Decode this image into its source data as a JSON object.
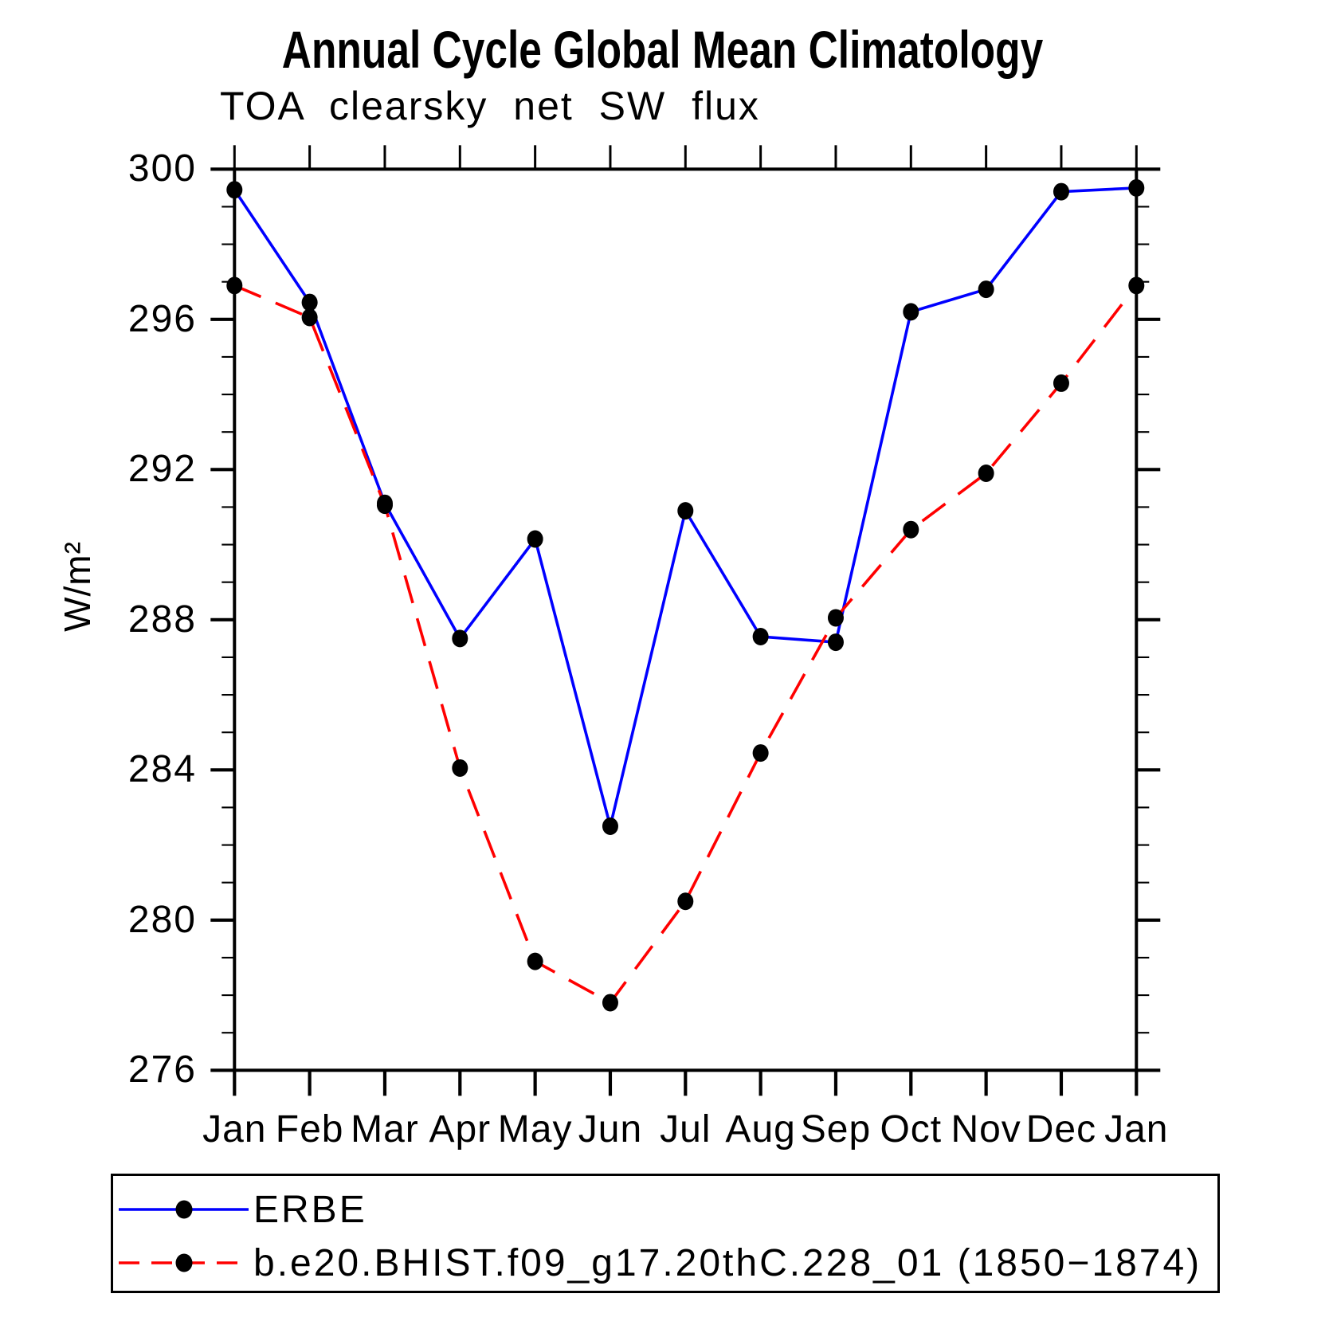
{
  "page": {
    "background": "#FFFFFF"
  },
  "chart_data": {
    "type": "line",
    "title": "Annual Cycle Global Mean Climatology",
    "subtitle": "TOA clearsky net SW flux",
    "ylabel": "W/m²",
    "x_categories": [
      "Jan",
      "Feb",
      "Mar",
      "Apr",
      "May",
      "Jun",
      "Jul",
      "Aug",
      "Sep",
      "Oct",
      "Nov",
      "Dec",
      "Jan"
    ],
    "ylim": [
      276,
      300
    ],
    "y_major_ticks": [
      300,
      296,
      292,
      288,
      284,
      280,
      276
    ],
    "y_minor_step": 1,
    "grid": false,
    "legend_position": "bottom-left-box",
    "axis_color": "#000000",
    "marker_color": "#000000",
    "series": [
      {
        "name": "ERBE",
        "color": "#0000FF",
        "line_style": "solid",
        "marker": "filled-circle",
        "values": [
          299.45,
          296.45,
          291.1,
          287.5,
          290.15,
          282.5,
          290.9,
          287.55,
          287.4,
          296.2,
          296.8,
          299.4,
          299.5
        ]
      },
      {
        "name": "b.e20.BHIST.f09_g17.20thC.228_01 (1850−1874)",
        "color": "#FF0000",
        "line_style": "dashed",
        "marker": "filled-circle",
        "values": [
          296.9,
          296.05,
          291.05,
          284.05,
          278.9,
          277.8,
          280.5,
          284.45,
          288.05,
          290.4,
          291.9,
          294.3,
          296.9
        ]
      }
    ]
  }
}
